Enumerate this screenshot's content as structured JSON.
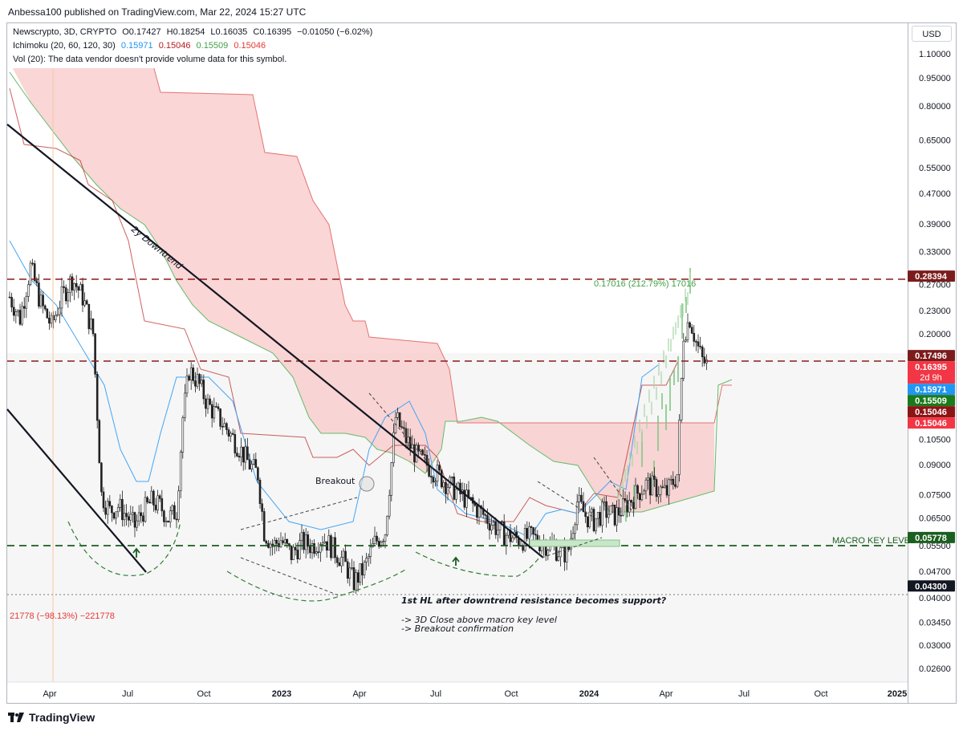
{
  "header": {
    "published": "Anbessa100 published on TradingView.com, Mar 22, 2024 15:27 UTC"
  },
  "legend": {
    "symbol": "Newscrypto, 3D, CRYPTO",
    "o": "O0.17427",
    "h": "H0.18254",
    "l": "L0.16035",
    "c": "C0.16395",
    "chg": "−0.01050 (−6.02%)",
    "ichimoku_label": "Ichimoku (20, 60, 120, 30)",
    "ichimoku_values": [
      "0.15971",
      "0.15046",
      "0.15509",
      "0.15046"
    ],
    "vol": "Vol (20): The data vendor doesn't provide volume data for this symbol."
  },
  "currency": "USD",
  "colors": {
    "up": "#26a69a",
    "down": "#ef5350",
    "candle": "#222222",
    "conversion": "#2196f3",
    "base": "#b71c1c",
    "lagging": "#43a047",
    "spanA": "#a5d6a7",
    "spanB": "#ef9a9a",
    "cloudRed": "#f8c8c8"
  },
  "chart_data": {
    "type": "candlestick",
    "y_scale": "log",
    "ylim": [
      0.0245,
      1.2
    ],
    "x_ticks": [
      "Apr",
      "Jul",
      "Oct",
      "2023",
      "Apr",
      "Jul",
      "Oct",
      "2024",
      "Apr",
      "Jul",
      "Oct",
      "2025"
    ],
    "y_ticks": [
      "1.10000",
      "0.95000",
      "0.80000",
      "0.65000",
      "0.55000",
      "0.47000",
      "0.39000",
      "0.33000",
      "0.27000",
      "0.23000",
      "0.20000",
      "0.10500",
      "0.09000",
      "0.07500",
      "0.06500",
      "0.05500",
      "0.04700",
      "0.04000",
      "0.03450",
      "0.03000",
      "0.02600"
    ],
    "price_labels": [
      {
        "value": "0.28394",
        "color": "#7b1c1c"
      },
      {
        "value": "0.17496",
        "color": "#7b1c1c"
      },
      {
        "value": "0.16395",
        "color": "#f23645",
        "sub": "2d 9h"
      },
      {
        "value": "0.15971",
        "color": "#2196f3"
      },
      {
        "value": "0.15509",
        "color": "#1b7a1b"
      },
      {
        "value": "0.15046",
        "color": "#8b1515"
      },
      {
        "value": "0.15046",
        "color": "#f23645"
      },
      {
        "value": "0.05778",
        "color": "#1b5e20"
      },
      {
        "value": "0.04300",
        "color": "#131722"
      }
    ],
    "horizontal_levels": [
      {
        "value": 0.28394,
        "style": "dashed",
        "color": "#8b1a1a"
      },
      {
        "value": 0.17496,
        "style": "dashed",
        "color": "#8b1a1a"
      },
      {
        "value": 0.05778,
        "style": "dashed",
        "color": "#1b5e20",
        "label": "MACRO KEY LEVEL"
      },
      {
        "value": 0.043,
        "style": "dotted",
        "color": "#555555"
      }
    ],
    "annotations": {
      "trendline_label": "2y Downtrend",
      "breakout": "Breakout",
      "projection_label": "0.17016 (212.79%) 17016",
      "bottom_left": "21778 (−98.13%) −221778",
      "note_title": "1st HL after downtrend resistance becomes support?",
      "note_line1": "-> 3D Close above macro key level",
      "note_line2": "-> Breakout confirmation"
    },
    "candles_close_trend": [
      [
        0,
        0.25
      ],
      [
        5,
        0.22
      ],
      [
        10,
        0.3
      ],
      [
        15,
        0.24
      ],
      [
        20,
        0.21
      ],
      [
        25,
        0.25
      ],
      [
        30,
        0.28
      ],
      [
        35,
        0.25
      ],
      [
        40,
        0.2
      ],
      [
        44,
        0.075
      ],
      [
        48,
        0.068
      ],
      [
        52,
        0.07
      ],
      [
        56,
        0.066
      ],
      [
        60,
        0.062
      ],
      [
        64,
        0.068
      ],
      [
        68,
        0.072
      ],
      [
        72,
        0.07
      ],
      [
        76,
        0.065
      ],
      [
        80,
        0.068
      ],
      [
        83,
        0.12
      ],
      [
        86,
        0.16
      ],
      [
        90,
        0.15
      ],
      [
        95,
        0.13
      ],
      [
        100,
        0.12
      ],
      [
        105,
        0.11
      ],
      [
        110,
        0.1
      ],
      [
        115,
        0.09
      ],
      [
        119,
        0.085
      ],
      [
        122,
        0.06
      ],
      [
        126,
        0.055
      ],
      [
        130,
        0.057
      ],
      [
        135,
        0.052
      ],
      [
        140,
        0.056
      ],
      [
        145,
        0.055
      ],
      [
        150,
        0.058
      ],
      [
        155,
        0.054
      ],
      [
        160,
        0.05
      ],
      [
        165,
        0.044
      ],
      [
        170,
        0.048
      ],
      [
        175,
        0.056
      ],
      [
        180,
        0.06
      ],
      [
        185,
        0.12
      ],
      [
        190,
        0.105
      ],
      [
        195,
        0.095
      ],
      [
        200,
        0.09
      ],
      [
        205,
        0.085
      ],
      [
        210,
        0.08
      ],
      [
        215,
        0.076
      ],
      [
        220,
        0.072
      ],
      [
        225,
        0.068
      ],
      [
        230,
        0.064
      ],
      [
        235,
        0.06
      ],
      [
        240,
        0.058
      ],
      [
        245,
        0.057
      ],
      [
        250,
        0.058
      ],
      [
        255,
        0.056
      ],
      [
        260,
        0.055
      ],
      [
        265,
        0.052
      ],
      [
        268,
        0.054
      ],
      [
        272,
        0.072
      ],
      [
        276,
        0.066
      ],
      [
        280,
        0.064
      ],
      [
        285,
        0.068
      ],
      [
        290,
        0.066
      ],
      [
        295,
        0.07
      ],
      [
        300,
        0.075
      ],
      [
        305,
        0.08
      ],
      [
        310,
        0.078
      ],
      [
        315,
        0.076
      ],
      [
        320,
        0.085
      ],
      [
        323,
        0.2
      ],
      [
        326,
        0.22
      ],
      [
        329,
        0.19
      ],
      [
        332,
        0.17
      ],
      [
        335,
        0.164
      ]
    ]
  }
}
